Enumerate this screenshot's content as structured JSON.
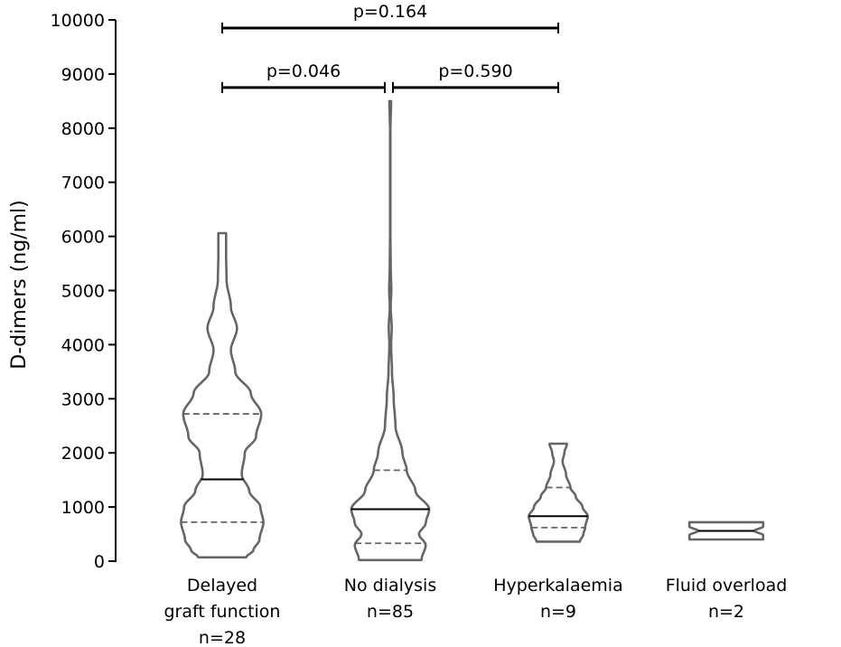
{
  "chart_data": {
    "type": "violin",
    "ylabel": "D-dimers (ng/ml)",
    "ylim": [
      0,
      10000
    ],
    "yticks": [
      "0",
      "1000",
      "2000",
      "3000",
      "4000",
      "5000",
      "6000",
      "7000",
      "8000",
      "9000",
      "10000"
    ],
    "groups": [
      {
        "label_lines": [
          "Delayed",
          "graft function",
          "n=28"
        ],
        "min": 70,
        "max": 6060,
        "q1": 720,
        "median": 1510,
        "q3": 2720,
        "profile": [
          [
            70,
            0.55
          ],
          [
            200,
            0.72
          ],
          [
            400,
            0.86
          ],
          [
            720,
            0.95
          ],
          [
            1000,
            0.88
          ],
          [
            1300,
            0.62
          ],
          [
            1600,
            0.45
          ],
          [
            2000,
            0.52
          ],
          [
            2300,
            0.78
          ],
          [
            2720,
            0.9
          ],
          [
            3100,
            0.66
          ],
          [
            3500,
            0.3
          ],
          [
            3900,
            0.2
          ],
          [
            4300,
            0.34
          ],
          [
            4700,
            0.2
          ],
          [
            5200,
            0.1
          ],
          [
            5600,
            0.09
          ],
          [
            6060,
            0.09
          ]
        ]
      },
      {
        "label_lines": [
          "No dialysis",
          "n=85"
        ],
        "min": 20,
        "max": 8500,
        "q1": 330,
        "median": 960,
        "q3": 1680,
        "profile": [
          [
            20,
            0.72
          ],
          [
            300,
            0.82
          ],
          [
            500,
            0.66
          ],
          [
            700,
            0.82
          ],
          [
            960,
            0.9
          ],
          [
            1300,
            0.58
          ],
          [
            1680,
            0.38
          ],
          [
            2000,
            0.28
          ],
          [
            2500,
            0.12
          ],
          [
            3000,
            0.08
          ],
          [
            3500,
            0.04
          ],
          [
            4000,
            0.02
          ],
          [
            4300,
            0.035
          ],
          [
            4700,
            0.01
          ],
          [
            5000,
            0.025
          ],
          [
            5500,
            0.01
          ],
          [
            6000,
            0.005
          ],
          [
            8000,
            0.005
          ],
          [
            8500,
            0.02
          ]
        ]
      },
      {
        "label_lines": [
          "Hyperkalaemia",
          "n=9"
        ],
        "min": 360,
        "max": 2170,
        "q1": 620,
        "median": 830,
        "q3": 1360,
        "profile": [
          [
            360,
            0.5
          ],
          [
            500,
            0.58
          ],
          [
            620,
            0.62
          ],
          [
            830,
            0.68
          ],
          [
            1000,
            0.56
          ],
          [
            1200,
            0.4
          ],
          [
            1360,
            0.28
          ],
          [
            1600,
            0.18
          ],
          [
            1850,
            0.1
          ],
          [
            2000,
            0.14
          ],
          [
            2170,
            0.2
          ]
        ]
      },
      {
        "label_lines": [
          "Fluid overload",
          "n=2"
        ],
        "min": 400,
        "max": 720,
        "q1": 560,
        "median": 560,
        "q3": 560,
        "profile": [
          [
            400,
            0.85
          ],
          [
            480,
            0.85
          ],
          [
            560,
            0.65
          ],
          [
            640,
            0.85
          ],
          [
            720,
            0.85
          ]
        ]
      }
    ],
    "comparisons": [
      {
        "label": "p=0.164",
        "from_group": 0,
        "to_group": 2,
        "y": 9850
      },
      {
        "label": "p=0.046",
        "from_group": 0,
        "to_group": 1,
        "y": 8750
      },
      {
        "label": "p=0.590",
        "from_group": 1,
        "to_group": 2,
        "y": 8750
      }
    ],
    "colors": {
      "violin": "#666666",
      "median": "#000000",
      "quartile": "#666666",
      "bracket": "#000000",
      "axis": "#000000"
    }
  }
}
